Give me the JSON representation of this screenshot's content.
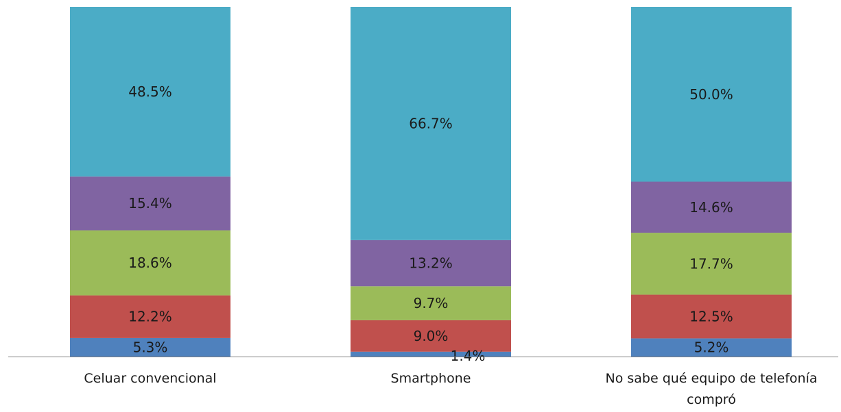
{
  "chart_data": {
    "type": "bar",
    "stacked": true,
    "percent_stacked": true,
    "categories": [
      [
        "Celuar convencional"
      ],
      [
        "Smartphone"
      ],
      [
        "No sabe qué equipo de telefonía",
        "compró"
      ]
    ],
    "series": [
      {
        "color": "#4f81bd",
        "values": [
          5.3,
          1.4,
          5.2
        ],
        "labels": [
          "5.3%",
          "1.4%",
          "5.2%"
        ]
      },
      {
        "color": "#c0504d",
        "values": [
          12.2,
          9.0,
          12.5
        ],
        "labels": [
          "12.2%",
          "9.0%",
          "12.5%"
        ]
      },
      {
        "color": "#9bbb59",
        "values": [
          18.6,
          9.7,
          17.7
        ],
        "labels": [
          "18.6%",
          "9.7%",
          "17.7%"
        ]
      },
      {
        "color": "#8064a2",
        "values": [
          15.4,
          13.2,
          14.6
        ],
        "labels": [
          "15.4%",
          "13.2%",
          "14.6%"
        ]
      },
      {
        "color": "#4bacc6",
        "values": [
          48.5,
          66.7,
          50.0
        ],
        "labels": [
          "48.5%",
          "66.7%",
          "50.0%"
        ]
      }
    ],
    "ylim": [
      0,
      100
    ],
    "grid": false,
    "legend": "none",
    "axis_color": "#808080",
    "title": "",
    "xlabel": "",
    "ylabel": ""
  }
}
